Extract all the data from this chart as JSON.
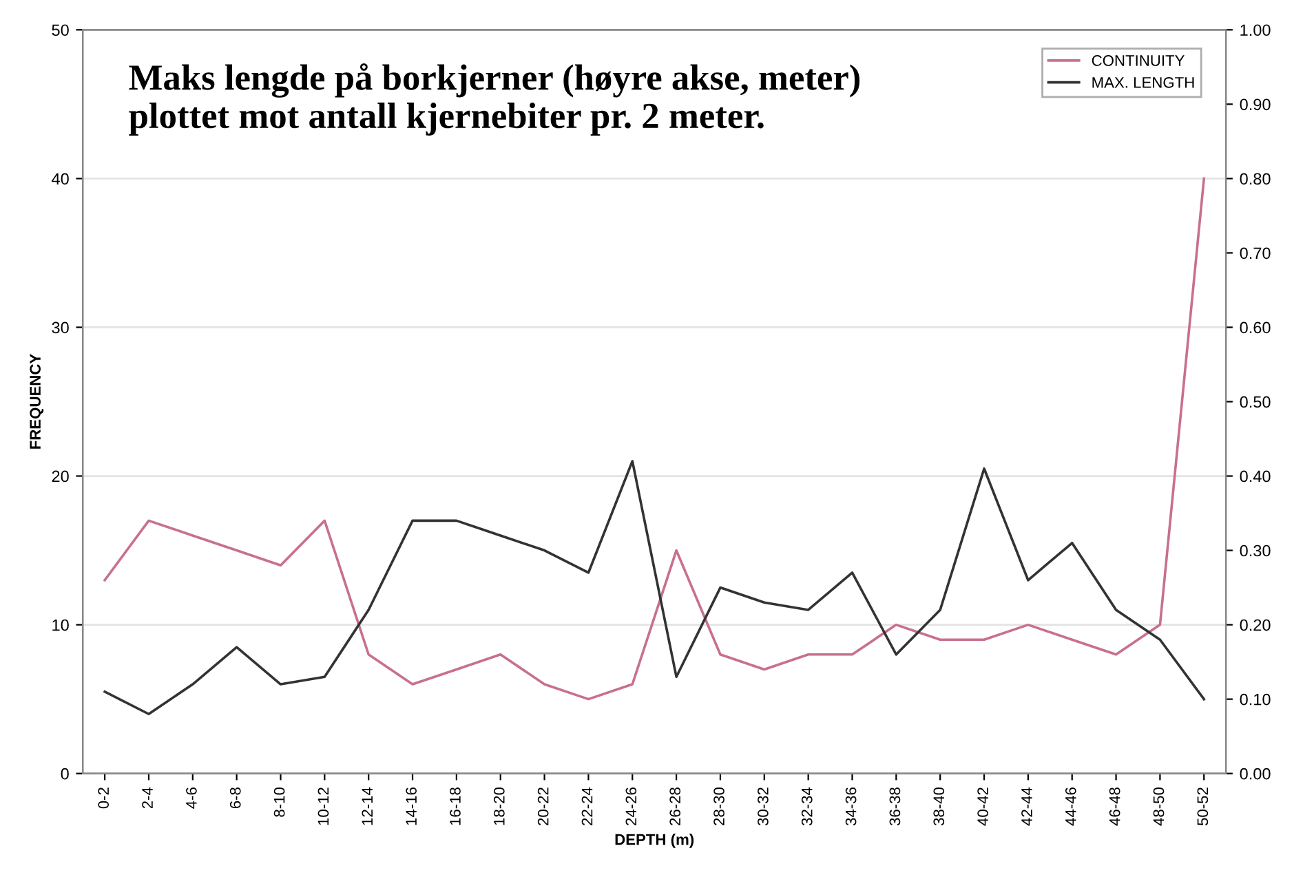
{
  "chart_data": {
    "type": "line",
    "title": "Maks lengde på borkjerner (høyre akse, meter)\nplottet mot antall kjernebiter pr. 2 meter.",
    "xlabel": "DEPTH (m)",
    "ylabel": "FREQUENCY",
    "categories": [
      "0-2",
      "2-4",
      "4-6",
      "6-8",
      "8-10",
      "10-12",
      "12-14",
      "14-16",
      "16-18",
      "18-20",
      "20-22",
      "22-24",
      "24-26",
      "26-28",
      "28-30",
      "30-32",
      "32-34",
      "34-36",
      "36-38",
      "38-40",
      "40-42",
      "42-44",
      "44-46",
      "46-48",
      "48-50",
      "50-52"
    ],
    "series": [
      {
        "name": "CONTINUITY",
        "color": "#c8708c",
        "values": [
          13,
          17,
          16,
          15,
          14,
          17,
          8,
          6,
          7,
          8,
          6,
          5,
          6,
          15,
          8,
          7,
          8,
          8,
          10,
          9,
          9,
          10,
          9,
          8,
          10,
          40
        ]
      },
      {
        "name": "MAX. LENGTH",
        "color": "#333333",
        "axis": "y2",
        "values": [
          0.11,
          0.08,
          0.12,
          0.17,
          0.12,
          0.13,
          0.22,
          0.34,
          0.34,
          0.32,
          0.3,
          0.27,
          0.42,
          0.13,
          0.25,
          0.23,
          0.22,
          0.27,
          0.16,
          0.22,
          0.41,
          0.26,
          0.31,
          0.22,
          0.18,
          0.1
        ]
      }
    ],
    "ylim": [
      0,
      50
    ],
    "yticks": [
      0,
      10,
      20,
      30,
      40,
      50
    ],
    "y2lim": [
      0,
      1
    ],
    "y2ticks": [
      {
        "value": 0,
        "label": "0.00"
      },
      {
        "value": 0.1,
        "label": "0.10"
      },
      {
        "value": 0.2,
        "label": "0.20"
      },
      {
        "value": 0.3,
        "label": "0.30"
      },
      {
        "value": 0.4,
        "label": "0.40"
      },
      {
        "value": 0.5,
        "label": "0.50"
      },
      {
        "value": 0.6,
        "label": "0.60"
      },
      {
        "value": 0.7,
        "label": "0.70"
      },
      {
        "value": 0.8,
        "label": "0.80"
      },
      {
        "value": 0.9,
        "label": "0.90"
      },
      {
        "value": 1,
        "label": "1.00"
      }
    ],
    "grid": "y",
    "legend": "top right",
    "marker": "none",
    "line_style": "solid"
  }
}
